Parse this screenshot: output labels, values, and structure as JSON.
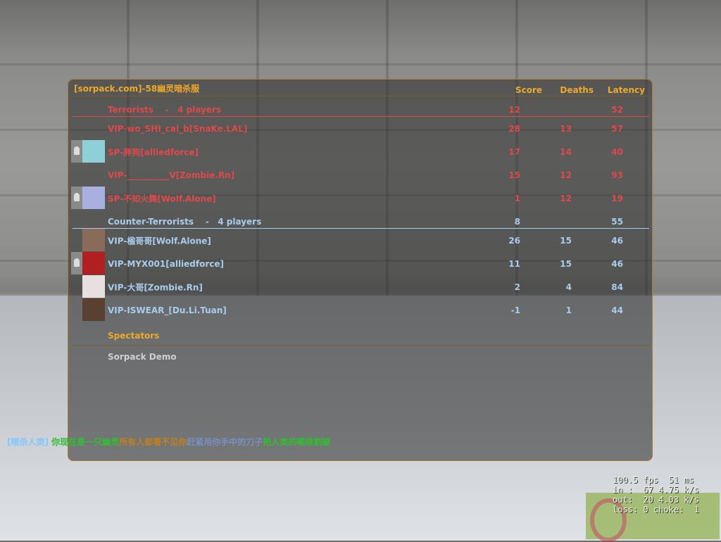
{
  "scoreboard": {
    "server_title": "[sorpack.com]-58幽灵暗杀服",
    "columns": {
      "score": "Score",
      "deaths": "Deaths",
      "latency": "Latency"
    },
    "teams": [
      {
        "label": "Terrorists    -   4 players",
        "score": "12",
        "latency": "52",
        "color": "#e0484a",
        "players": [
          {
            "name": "VIP-wo_SHI_cai_b[SnaKe.LAL]",
            "score": "28",
            "deaths": "13",
            "latency": "57",
            "avatar": false,
            "ghost": false
          },
          {
            "name": "SP-胖狗[alliedforce]",
            "score": "17",
            "deaths": "14",
            "latency": "40",
            "avatar": true,
            "ghost": true,
            "avatar_color": "#8fd0d8"
          },
          {
            "name": "VIP-__________V[Zombie.Rn]",
            "score": "15",
            "deaths": "12",
            "latency": "93",
            "avatar": false,
            "ghost": false
          },
          {
            "name": "SP-不知火舞[Wolf.Alone]",
            "score": "1",
            "deaths": "12",
            "latency": "19",
            "avatar": true,
            "ghost": true,
            "avatar_color": "#a8b0e0"
          }
        ]
      },
      {
        "label": "Counter-Terrorists    -   4 players",
        "score": "8",
        "latency": "55",
        "color": "#a8ccee",
        "players": [
          {
            "name": "VIP-楹哥哥[Wolf.Alone]",
            "score": "26",
            "deaths": "15",
            "latency": "46",
            "avatar": true,
            "ghost": false,
            "avatar_color": "#8a6a58"
          },
          {
            "name": "VIP-MYX001[alliedforce]",
            "score": "11",
            "deaths": "15",
            "latency": "46",
            "avatar": true,
            "ghost": true,
            "avatar_color": "#b02020"
          },
          {
            "name": "VIP-大哥[Zombie.Rn]",
            "score": "2",
            "deaths": "4",
            "latency": "84",
            "avatar": true,
            "ghost": false,
            "avatar_color": "#e8e0e0"
          },
          {
            "name": "VIP-ISWEAR_[Du.Li.Tuan]",
            "score": "-1",
            "deaths": "1",
            "latency": "44",
            "avatar": true,
            "ghost": false,
            "avatar_color": "#5a4030"
          }
        ]
      }
    ],
    "spectators": {
      "label": "Spectators",
      "players": [
        "Sorpack Demo"
      ]
    }
  },
  "chat": {
    "prefix": "[暗杀人类]",
    "segments": [
      {
        "text": "你现在是一只幽灵",
        "color": "#30c030"
      },
      {
        "text": "所有人都看不见你",
        "color": "#c08020"
      },
      {
        "text": "赶紧用你手中的刀子",
        "color": "#7890c0"
      },
      {
        "text": "把人类的喉咙割破",
        "color": "#30c030"
      }
    ],
    "prefix_color": "#80c8ff"
  },
  "netgraph": {
    "fps": "100.5 fps  51 ms",
    "in": "in :  67 4.75 k/s",
    "out": "out:  20 4.03 k/s",
    "loss": "loss: 0 choke:  1"
  }
}
